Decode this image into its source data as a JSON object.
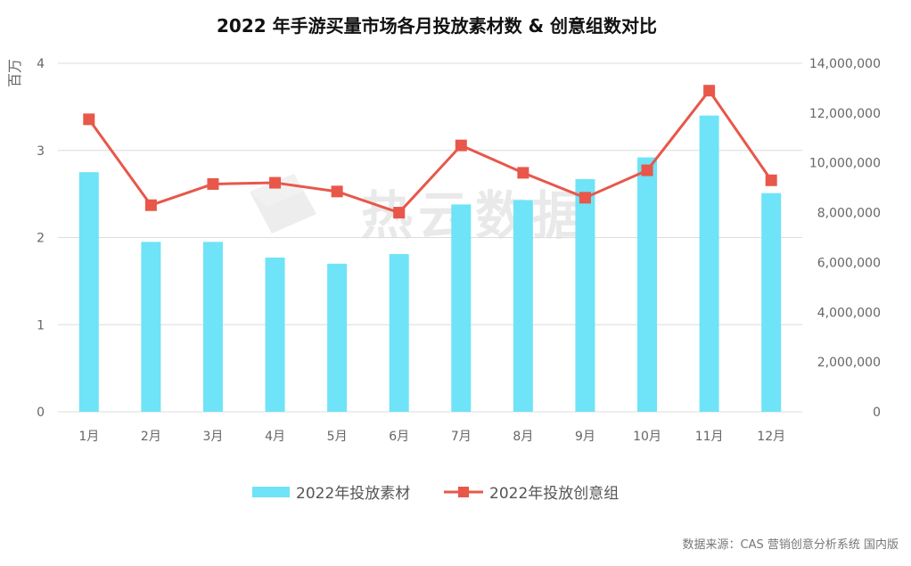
{
  "chart_data": {
    "type": "bar",
    "title": "2022 年手游买量市场各月投放素材数 & 创意组数对比",
    "categories": [
      "1月",
      "2月",
      "3月",
      "4月",
      "5月",
      "6月",
      "7月",
      "8月",
      "9月",
      "10月",
      "11月",
      "12月"
    ],
    "left_axis": {
      "unit_label": "百万",
      "ylim": [
        0,
        4
      ],
      "ticks": [
        "0",
        "1",
        "2",
        "3",
        "4"
      ]
    },
    "right_axis": {
      "ylim": [
        0,
        14000000
      ],
      "ticks": [
        "0",
        "2,000,000",
        "4,000,000",
        "6,000,000",
        "8,000,000",
        "10,000,000",
        "12,000,000",
        "14,000,000"
      ]
    },
    "series": [
      {
        "name": "2022年投放素材",
        "type": "bar",
        "axis": "left",
        "color": "#6fe3f7",
        "values": [
          2.75,
          1.95,
          1.95,
          1.77,
          1.7,
          1.81,
          2.38,
          2.43,
          2.67,
          2.92,
          3.4,
          2.51
        ]
      },
      {
        "name": "2022年投放创意组",
        "type": "line",
        "axis": "right",
        "color": "#e8574a",
        "values": [
          11750000,
          8300000,
          9150000,
          9200000,
          8850000,
          8000000,
          10700000,
          9600000,
          8600000,
          9700000,
          12900000,
          9300000
        ]
      }
    ],
    "grid": true,
    "legend_position": "bottom"
  },
  "watermark": "热云数据",
  "source_note": "数据来源：CAS 营销创意分析系统 国内版"
}
